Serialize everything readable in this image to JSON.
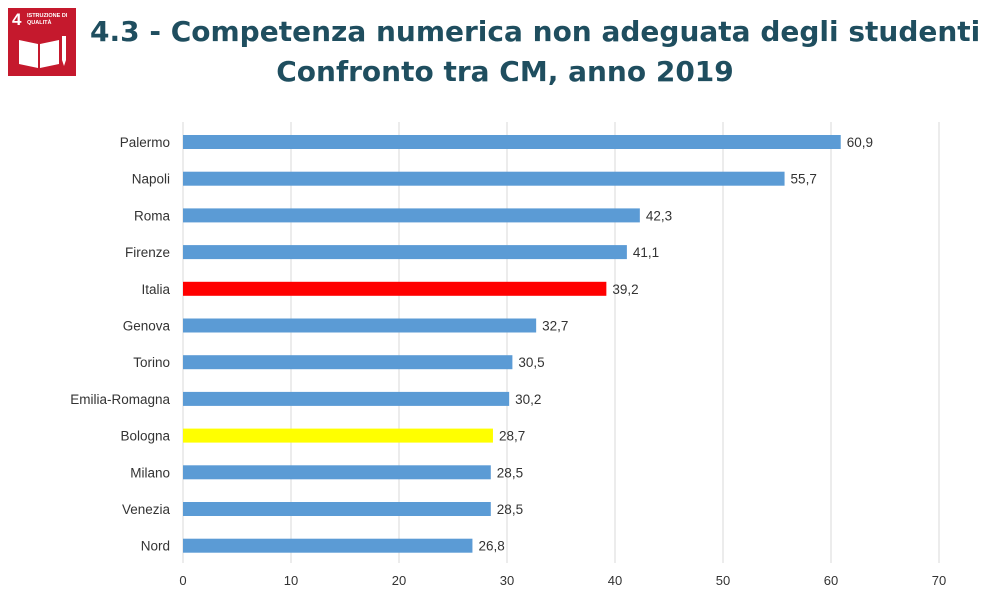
{
  "header": {
    "badge_number": "4",
    "badge_text": "Istruzione di qualità",
    "badge_icon": "book-pencil-icon",
    "title_line1": "4.3 - Competenza numerica non adeguata degli studenti",
    "title_line2": "Confronto tra CM, anno 2019"
  },
  "colors": {
    "default_bar": "#5b9bd5",
    "highlight_italia": "#ff0000",
    "highlight_bologna": "#ffff00",
    "title": "#1f4e5f",
    "badge": "#c5192d"
  },
  "chart_data": {
    "type": "bar",
    "orientation": "horizontal",
    "title": "4.3 - Competenza numerica non adeguata degli studenti",
    "subtitle": "Confronto tra CM, anno 2019",
    "xlabel": "",
    "ylabel": "",
    "xlim": [
      0,
      70
    ],
    "xticks": [
      0,
      10,
      20,
      30,
      40,
      50,
      60,
      70
    ],
    "grid": "vertical",
    "categories": [
      "Palermo",
      "Napoli",
      "Roma",
      "Firenze",
      "Italia",
      "Genova",
      "Torino",
      "Emilia-Romagna",
      "Bologna",
      "Milano",
      "Venezia",
      "Nord"
    ],
    "values": [
      60.9,
      55.7,
      42.3,
      41.1,
      39.2,
      32.7,
      30.5,
      30.2,
      28.7,
      28.5,
      28.5,
      26.8
    ],
    "value_labels": [
      "60,9",
      "55,7",
      "42,3",
      "41,1",
      "39,2",
      "32,7",
      "30,5",
      "30,2",
      "28,7",
      "28,5",
      "28,5",
      "26,8"
    ],
    "bar_colors": [
      "#5b9bd5",
      "#5b9bd5",
      "#5b9bd5",
      "#5b9bd5",
      "#ff0000",
      "#5b9bd5",
      "#5b9bd5",
      "#5b9bd5",
      "#ffff00",
      "#5b9bd5",
      "#5b9bd5",
      "#5b9bd5"
    ]
  }
}
